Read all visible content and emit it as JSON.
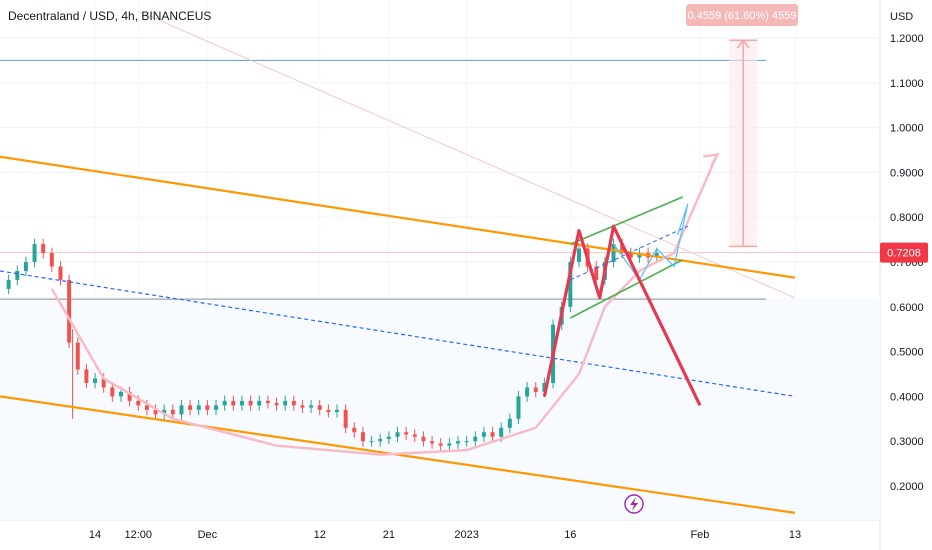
{
  "chart_data": {
    "type": "candlestick",
    "title": "Decentraland / USD, 4h, BINANCEUS",
    "currency_label": "USD",
    "y_ticks": [
      "1.2000",
      "1.1000",
      "1.0000",
      "0.9000",
      "0.8000",
      "0.7000",
      "0.6000",
      "0.5000",
      "0.4000",
      "0.3000",
      "0.2000"
    ],
    "y_tick_values": [
      1.2,
      1.1,
      1.0,
      0.9,
      0.8,
      0.7,
      0.6,
      0.5,
      0.4,
      0.3,
      0.2
    ],
    "ylim": [
      0.13,
      1.25
    ],
    "x_ticks": [
      "14",
      "12:00",
      "Dec",
      "12",
      "21",
      "2023",
      "16",
      "Feb",
      "13"
    ],
    "x_tick_values": [
      5.5,
      8,
      12,
      18.5,
      22.5,
      27,
      33,
      40.5,
      46
    ],
    "xlim": [
      0,
      52
    ],
    "last_price": "0.7208",
    "last_price_value": 0.7208,
    "measure_label": "0.4559 (61.60%) 4559",
    "horizontal_levels": [
      {
        "value": 1.15,
        "color": "#5b9bd5"
      },
      {
        "value": 0.617,
        "color": "#8a8f99"
      }
    ],
    "price_path": [
      [
        0,
        0.64
      ],
      [
        0.5,
        0.66
      ],
      [
        1,
        0.68
      ],
      [
        1.5,
        0.7
      ],
      [
        2,
        0.74
      ],
      [
        2.5,
        0.72
      ],
      [
        3,
        0.69
      ],
      [
        3.5,
        0.66
      ],
      [
        4,
        0.52
      ],
      [
        4.5,
        0.46
      ],
      [
        5,
        0.43
      ],
      [
        5.5,
        0.44
      ],
      [
        6,
        0.42
      ],
      [
        6.5,
        0.4
      ],
      [
        7,
        0.41
      ],
      [
        7.5,
        0.39
      ],
      [
        8,
        0.38
      ],
      [
        8.5,
        0.37
      ],
      [
        9,
        0.36
      ],
      [
        9.5,
        0.37
      ],
      [
        10,
        0.36
      ],
      [
        10.5,
        0.38
      ],
      [
        11,
        0.37
      ],
      [
        11.5,
        0.38
      ],
      [
        12,
        0.37
      ],
      [
        12.5,
        0.38
      ],
      [
        13,
        0.39
      ],
      [
        13.5,
        0.38
      ],
      [
        14,
        0.39
      ],
      [
        14.5,
        0.38
      ],
      [
        15,
        0.39
      ],
      [
        15.5,
        0.385
      ],
      [
        16,
        0.38
      ],
      [
        16.5,
        0.39
      ],
      [
        17,
        0.38
      ],
      [
        17.5,
        0.375
      ],
      [
        18,
        0.38
      ],
      [
        18.5,
        0.37
      ],
      [
        19,
        0.365
      ],
      [
        19.5,
        0.37
      ],
      [
        20,
        0.33
      ],
      [
        20.5,
        0.32
      ],
      [
        21,
        0.3
      ],
      [
        21.5,
        0.3
      ],
      [
        22,
        0.305
      ],
      [
        22.5,
        0.31
      ],
      [
        23,
        0.32
      ],
      [
        23.5,
        0.315
      ],
      [
        24,
        0.31
      ],
      [
        24.5,
        0.3
      ],
      [
        25,
        0.295
      ],
      [
        25.5,
        0.29
      ],
      [
        26,
        0.295
      ],
      [
        26.5,
        0.3
      ],
      [
        27,
        0.3
      ],
      [
        27.5,
        0.31
      ],
      [
        28,
        0.32
      ],
      [
        28.5,
        0.31
      ],
      [
        29,
        0.33
      ],
      [
        29.5,
        0.35
      ],
      [
        30,
        0.4
      ],
      [
        30.5,
        0.42
      ],
      [
        31,
        0.41
      ],
      [
        31.5,
        0.43
      ],
      [
        32,
        0.56
      ],
      [
        32.5,
        0.6
      ],
      [
        33,
        0.7
      ],
      [
        33.5,
        0.73
      ],
      [
        34,
        0.69
      ],
      [
        34.5,
        0.66
      ],
      [
        35,
        0.7
      ],
      [
        35.5,
        0.74
      ],
      [
        36,
        0.72
      ],
      [
        36.5,
        0.71
      ],
      [
        37,
        0.72
      ],
      [
        37.5,
        0.71
      ],
      [
        38,
        0.72
      ]
    ],
    "drawings": {
      "orange_channel_upper": [
        [
          0,
          0.935
        ],
        [
          46,
          0.665
        ]
      ],
      "orange_channel_lower": [
        [
          0,
          0.4
        ],
        [
          46,
          0.14
        ]
      ],
      "blue_dashed": [
        [
          0,
          0.68
        ],
        [
          46,
          0.4
        ]
      ],
      "green_channel_upper": [
        [
          33,
          0.74
        ],
        [
          39.5,
          0.845
        ]
      ],
      "green_channel_lower": [
        [
          33,
          0.575
        ],
        [
          39.5,
          0.705
        ]
      ],
      "red_zigzag": [
        [
          31.5,
          0.4
        ],
        [
          33.5,
          0.77
        ],
        [
          34.7,
          0.62
        ],
        [
          35.5,
          0.78
        ],
        [
          40.5,
          0.38
        ]
      ],
      "pink_arc": [
        [
          3,
          0.64
        ],
        [
          6,
          0.44
        ],
        [
          10,
          0.35
        ],
        [
          16,
          0.29
        ],
        [
          22,
          0.27
        ],
        [
          27,
          0.28
        ],
        [
          31,
          0.33
        ],
        [
          33.5,
          0.45
        ],
        [
          35,
          0.6
        ],
        [
          37,
          0.68
        ],
        [
          39,
          0.72
        ],
        [
          41.5,
          0.94
        ]
      ],
      "measure_top": 1.195,
      "measure_bottom": 0.735,
      "measure_x": 43
    }
  }
}
